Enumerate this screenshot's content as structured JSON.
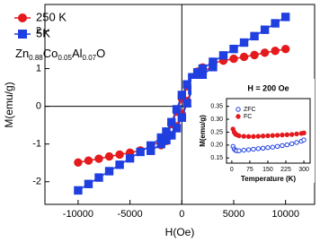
{
  "chart_data": [
    {
      "type": "line",
      "x_label": "H(Oe)",
      "y_label": "M(emu/g)",
      "annotation": [
        "Zn",
        "0.88",
        "Co",
        "0.05",
        "Al",
        "0.07",
        "O"
      ],
      "xlim": [
        -13200,
        12800
      ],
      "ylim": [
        -2.6,
        2.7
      ],
      "xticks": [
        -10000,
        -5000,
        0,
        5000,
        10000
      ],
      "yticks": [
        -2,
        -1,
        0,
        1,
        2
      ],
      "zero_lines": true,
      "legend": "upper left",
      "series": [
        {
          "name": "250 K",
          "color": "#e41a1c",
          "marker": "circle",
          "filled": true,
          "x": [
            10000,
            9000,
            8000,
            7000,
            6000,
            5000,
            4000,
            3000,
            2000,
            1500,
            1000,
            500,
            0,
            -500,
            -1000,
            -1500,
            -2000,
            -3000,
            -4000,
            -5000,
            -6000,
            -7000,
            -8000,
            -9000,
            -10000,
            null,
            -3000,
            -2000,
            -1500,
            -1000,
            -500,
            0,
            500,
            1000,
            1500,
            2000,
            3000
          ],
          "values": [
            1.52,
            1.47,
            1.42,
            1.36,
            1.31,
            1.26,
            1.21,
            1.14,
            1.03,
            0.92,
            0.77,
            0.53,
            0.21,
            -0.14,
            -0.47,
            -0.72,
            -0.9,
            -1.08,
            -1.17,
            -1.23,
            -1.28,
            -1.33,
            -1.39,
            -1.44,
            -1.49,
            null,
            -1.14,
            -1.03,
            -0.92,
            -0.77,
            -0.53,
            -0.21,
            0.14,
            0.47,
            0.72,
            0.9,
            1.08
          ]
        },
        {
          "name": "5K",
          "color": "#1f3fe0",
          "marker": "square",
          "filled": true,
          "x": [
            10000,
            9000,
            8000,
            7000,
            6000,
            5000,
            4000,
            3000,
            2000,
            1500,
            1000,
            500,
            0,
            -500,
            -1000,
            -1500,
            -2000,
            -3000,
            -4000,
            -5000,
            -6000,
            -7000,
            -8000,
            -9000,
            -10000,
            null,
            -3000,
            -2000,
            -1500,
            -1000,
            -500,
            0,
            500,
            1000,
            1500,
            2000,
            3000
          ],
          "values": [
            2.37,
            2.2,
            2.03,
            1.86,
            1.69,
            1.52,
            1.35,
            1.18,
            1.0,
            0.9,
            0.77,
            0.58,
            0.3,
            -0.08,
            -0.42,
            -0.67,
            -0.83,
            -1.04,
            -1.21,
            -1.38,
            -1.55,
            -1.72,
            -1.89,
            -2.06,
            -2.23,
            null,
            -1.18,
            -1.0,
            -0.9,
            -0.77,
            -0.58,
            -0.3,
            0.08,
            0.42,
            0.67,
            0.83,
            1.04
          ]
        }
      ]
    },
    {
      "type": "scatter",
      "title": "H = 200 Oe",
      "x_label": "Temperature (K)",
      "y_label": "M(emu/g)",
      "xlim": [
        -22,
        326
      ],
      "ylim": [
        0.13,
        0.38
      ],
      "xticks": [
        0,
        75,
        150,
        225,
        300
      ],
      "yticks": [
        0.15,
        {
          "value": 0.2,
          "label": "0.20"
        },
        0.25,
        {
          "value": 0.3,
          "label": "0.30"
        },
        0.35
      ],
      "legend": "upper left",
      "series": [
        {
          "name": "ZFC",
          "color": "#1f3fe0",
          "marker": "circle",
          "filled": false,
          "x": [
            5,
            10,
            15,
            20,
            30,
            50,
            70,
            90,
            110,
            130,
            150,
            170,
            190,
            210,
            230,
            250,
            270,
            290,
            300
          ],
          "values": [
            0.195,
            0.185,
            0.18,
            0.178,
            0.178,
            0.18,
            0.182,
            0.184,
            0.186,
            0.188,
            0.19,
            0.192,
            0.195,
            0.198,
            0.201,
            0.205,
            0.21,
            0.215,
            0.22
          ]
        },
        {
          "name": "FC",
          "color": "#e41a1c",
          "marker": "circle",
          "filled": true,
          "x": [
            5,
            10,
            15,
            20,
            30,
            50,
            70,
            90,
            110,
            130,
            150,
            170,
            190,
            210,
            230,
            250,
            270,
            290,
            300
          ],
          "values": [
            0.262,
            0.25,
            0.243,
            0.24,
            0.236,
            0.234,
            0.233,
            0.233,
            0.234,
            0.235,
            0.236,
            0.237,
            0.238,
            0.239,
            0.24,
            0.241,
            0.243,
            0.245,
            0.247
          ]
        }
      ]
    }
  ]
}
